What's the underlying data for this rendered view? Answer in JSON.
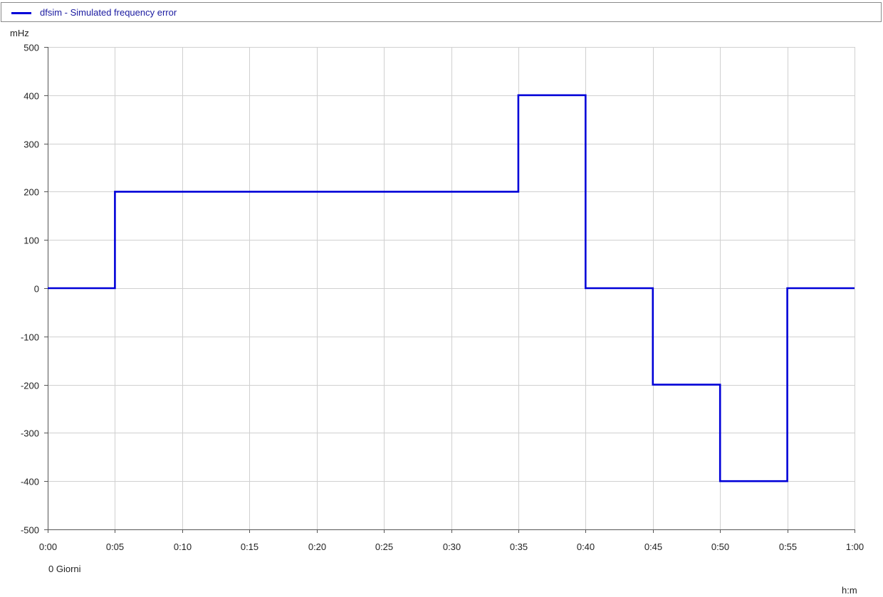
{
  "legend": {
    "label": "dfsim - Simulated frequency error"
  },
  "colors": {
    "series": "#0000d8",
    "grid": "#d0d0d0",
    "axis": "#555555"
  },
  "chart_data": {
    "type": "line",
    "step": true,
    "ylabel": "mHz",
    "xlabel": "h:m",
    "x_sublabel": "0 Giorni",
    "xlim": [
      0,
      60
    ],
    "ylim": [
      -500,
      500
    ],
    "x_ticks": [
      0,
      5,
      10,
      15,
      20,
      25,
      30,
      35,
      40,
      45,
      50,
      55,
      60
    ],
    "x_tick_labels": [
      "0:00",
      "0:05",
      "0:10",
      "0:15",
      "0:20",
      "0:25",
      "0:30",
      "0:35",
      "0:40",
      "0:45",
      "0:50",
      "0:55",
      "1:00"
    ],
    "y_ticks": [
      500,
      400,
      300,
      200,
      100,
      0,
      -100,
      -200,
      -300,
      -400,
      -500
    ],
    "y_tick_labels": [
      "500",
      "400",
      "300",
      "200",
      "100",
      "0",
      "-100",
      "-200",
      "-300",
      "-400",
      "-500"
    ],
    "grid": true,
    "legend_position": "top",
    "series": [
      {
        "name": "dfsim - Simulated frequency error",
        "x": [
          0,
          5,
          5,
          35,
          35,
          40,
          40,
          45,
          45,
          50,
          50,
          55,
          55,
          60
        ],
        "y": [
          0,
          0,
          200,
          200,
          400,
          400,
          0,
          0,
          -200,
          -200,
          -400,
          -400,
          0,
          0
        ]
      }
    ]
  }
}
